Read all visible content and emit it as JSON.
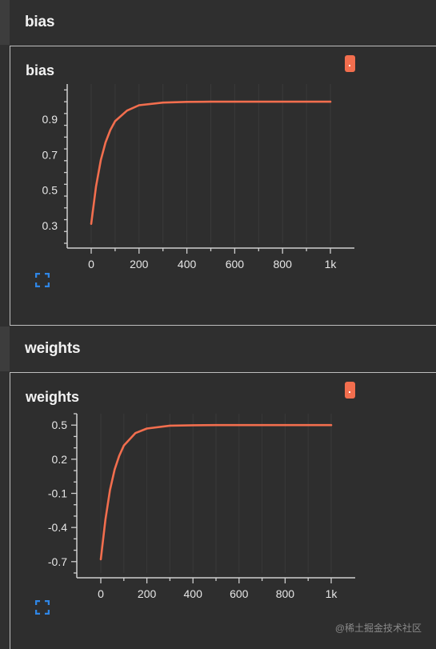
{
  "sections": [
    {
      "header_title": "bias",
      "card_title": "bias"
    },
    {
      "header_title": "weights",
      "card_title": "weights"
    }
  ],
  "colors": {
    "series_line": "#f26e4e",
    "axis": "#cfcfcf",
    "grid": "#3a3a3a",
    "expand_icon": "#2f86e6"
  },
  "watermark": "@稀土掘金技术社区",
  "chart_data": [
    {
      "type": "line",
      "title": "bias",
      "x_ticks": [
        "0",
        "200",
        "400",
        "600",
        "800",
        "1k"
      ],
      "y_ticks": [
        "0.3",
        "0.5",
        "0.7",
        "0.9"
      ],
      "xlim": [
        0,
        1000
      ],
      "ylim": [
        0.2,
        1.1
      ],
      "grid": true,
      "x": [
        0,
        20,
        40,
        60,
        80,
        100,
        150,
        200,
        300,
        400,
        500,
        600,
        800,
        1000
      ],
      "y": [
        0.31,
        0.52,
        0.67,
        0.77,
        0.84,
        0.89,
        0.95,
        0.98,
        0.995,
        0.999,
        1.0,
        1.0,
        1.0,
        1.0
      ]
    },
    {
      "type": "line",
      "title": "weights",
      "x_ticks": [
        "0",
        "200",
        "400",
        "600",
        "800",
        "1k"
      ],
      "y_ticks": [
        "0.5",
        "0.2",
        "-0.1",
        "-0.4",
        "-0.7"
      ],
      "xlim": [
        0,
        1000
      ],
      "ylim": [
        -0.8,
        0.6
      ],
      "grid": true,
      "x": [
        0,
        20,
        40,
        60,
        80,
        100,
        150,
        200,
        300,
        400,
        500,
        600,
        800,
        1000
      ],
      "y": [
        -0.68,
        -0.33,
        -0.07,
        0.11,
        0.23,
        0.32,
        0.43,
        0.47,
        0.495,
        0.499,
        0.5,
        0.5,
        0.5,
        0.5
      ]
    }
  ]
}
